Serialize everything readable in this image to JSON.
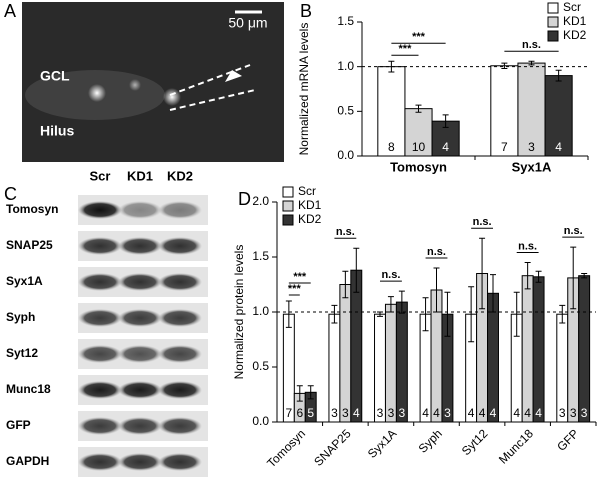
{
  "panel_labels": [
    "A",
    "B",
    "C",
    "D"
  ],
  "image_a": {
    "scale_bar": "50 μm",
    "labels": [
      "GCL",
      "Hilus"
    ]
  },
  "blot_c": {
    "lanes": [
      "Scr",
      "KD1",
      "KD2"
    ],
    "rows": [
      "Tomosyn",
      "SNAP25",
      "Syx1A",
      "Syph",
      "Syt12",
      "Munc18",
      "GFP",
      "GAPDH"
    ]
  },
  "chart_data": [
    {
      "type": "bar",
      "y_label": "Normalized mRNA levels",
      "categories": [
        "Tomosyn",
        "Syx1A"
      ],
      "series": [
        {
          "name": "Scr",
          "color": "#ffffff",
          "values": [
            1.0,
            1.01
          ],
          "errors": [
            0.06,
            0.03
          ],
          "n": [
            8,
            7
          ]
        },
        {
          "name": "KD1",
          "color": "#d4d4d4",
          "values": [
            0.53,
            1.04
          ],
          "errors": [
            0.04,
            0.02
          ],
          "n": [
            10,
            3
          ]
        },
        {
          "name": "KD2",
          "color": "#333333",
          "values": [
            0.39,
            0.9
          ],
          "errors": [
            0.07,
            0.06
          ],
          "n": [
            4,
            4
          ]
        }
      ],
      "ylim": [
        0,
        1.5
      ],
      "yticks": [
        {
          "value": 0,
          "label": "0.0"
        },
        {
          "value": 0.5,
          "label": "0.5"
        },
        {
          "value": 1,
          "label": "1.0"
        },
        {
          "value": 1.5,
          "label": "1.5"
        }
      ],
      "reference_line": 1,
      "legend": "upper right",
      "annotations": [
        {
          "text": "***",
          "category": 0,
          "series": [
            0,
            1
          ]
        },
        {
          "text": "***",
          "category": 0,
          "series": [
            0,
            2
          ]
        },
        {
          "text": "n.s.",
          "category": 1,
          "series": [
            0,
            2
          ]
        }
      ]
    },
    {
      "type": "bar",
      "y_label": "Normalized protein levels",
      "categories": [
        "Tomosyn",
        "SNAP25",
        "Syx1A",
        "Syph",
        "Syt12",
        "Munc18",
        "GFP"
      ],
      "series": [
        {
          "name": "Scr",
          "color": "#ffffff",
          "values": [
            0.98,
            0.98,
            0.98,
            0.98,
            0.98,
            0.98,
            0.98
          ],
          "errors": [
            0.12,
            0.08,
            0.02,
            0.15,
            0.25,
            0.2,
            0.08
          ],
          "n": [
            7,
            3,
            3,
            4,
            4,
            4,
            3
          ]
        },
        {
          "name": "KD1",
          "color": "#d4d4d4",
          "values": [
            0.26,
            1.25,
            1.07,
            1.2,
            1.35,
            1.33,
            1.31
          ],
          "errors": [
            0.07,
            0.12,
            0.07,
            0.2,
            0.32,
            0.12,
            0.28
          ],
          "n": [
            6,
            3,
            3,
            4,
            4,
            4,
            3
          ]
        },
        {
          "name": "KD2",
          "color": "#333333",
          "values": [
            0.27,
            1.38,
            1.09,
            0.98,
            1.17,
            1.32,
            1.33
          ],
          "errors": [
            0.06,
            0.2,
            0.1,
            0.2,
            0.17,
            0.05,
            0.02
          ],
          "n": [
            5,
            4,
            3,
            3,
            4,
            4,
            3
          ]
        }
      ],
      "ylim": [
        0,
        2
      ],
      "yticks": [
        {
          "value": 0,
          "label": "0.0"
        },
        {
          "value": 0.5,
          "label": "0.5"
        },
        {
          "value": 1,
          "label": "1.0"
        },
        {
          "value": 1.5,
          "label": "1.5"
        },
        {
          "value": 2,
          "label": "2.0"
        }
      ],
      "reference_line": 1,
      "legend": "upper left",
      "annotations": [
        {
          "text": "***",
          "category": 0,
          "series": [
            0,
            1
          ]
        },
        {
          "text": "***",
          "category": 0,
          "series": [
            0,
            2
          ]
        },
        {
          "text": "n.s.",
          "category": 1,
          "series": [
            0,
            2
          ]
        },
        {
          "text": "n.s.",
          "category": 2,
          "series": [
            0,
            2
          ]
        },
        {
          "text": "n.s.",
          "category": 3,
          "series": [
            0,
            2
          ]
        },
        {
          "text": "n.s.",
          "category": 4,
          "series": [
            0,
            2
          ]
        },
        {
          "text": "n.s.",
          "category": 5,
          "series": [
            0,
            2
          ]
        },
        {
          "text": "n.s.",
          "category": 6,
          "series": [
            0,
            2
          ]
        }
      ]
    }
  ]
}
